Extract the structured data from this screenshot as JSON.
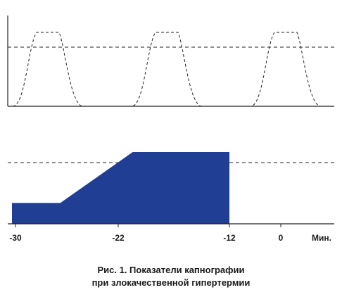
{
  "chart_data": [
    {
      "type": "line",
      "description": "Capnogram waveform (top panel)",
      "series": [
        {
          "values_shape": "periodic plateau waves",
          "cycles": 3
        }
      ],
      "reference_line": "dashed",
      "grid": false
    },
    {
      "type": "area",
      "x_ticks": [
        "-30",
        "-22",
        "-12",
        "0",
        "Мин."
      ],
      "x": [
        -30,
        -26,
        -20,
        -12
      ],
      "y_relative": [
        0.29,
        0.29,
        1.0,
        1.0
      ],
      "reference_line": "dashed",
      "fill_color": "#213e95",
      "grid": false
    }
  ],
  "caption": {
    "line1": "Рис. 1. Показатели капнографии",
    "line2": "при злокачественной гипертермии"
  }
}
